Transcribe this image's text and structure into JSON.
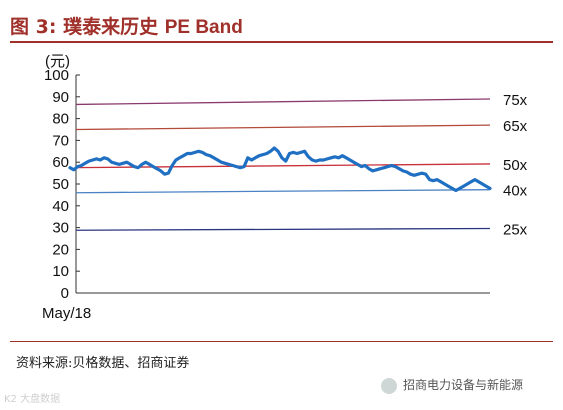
{
  "header": {
    "figure_label": "图 3:",
    "title_cn": "璞泰来历史",
    "title_en": "PE Band"
  },
  "source": "资料来源:贝格数据、招商证券",
  "wechat_account": "招商电力设备与新能源",
  "watermark": "K2 大盘数据",
  "colors": {
    "title": "#a0302a",
    "price_line": "#1f6fc2",
    "band_75x": "#8a3a6e",
    "band_65x": "#b34a3a",
    "band_50x": "#c8313a",
    "band_40x": "#4a82c4",
    "band_25x": "#2a3580"
  },
  "chart_data": {
    "type": "line",
    "ylabel": "(元)",
    "ylim": [
      0,
      100
    ],
    "yticks": [
      "0",
      "10",
      "20",
      "30",
      "40",
      "50",
      "60",
      "70",
      "80",
      "90",
      "100"
    ],
    "xticks": [
      "May/18"
    ],
    "grid": false,
    "bands": [
      {
        "name": "75x",
        "start": 86.5,
        "end": 89.0
      },
      {
        "name": "65x",
        "start": 75.0,
        "end": 77.0
      },
      {
        "name": "50x",
        "start": 57.5,
        "end": 59.2
      },
      {
        "name": "40x",
        "start": 46.0,
        "end": 47.4
      },
      {
        "name": "25x",
        "start": 28.8,
        "end": 29.6
      }
    ],
    "price": {
      "name": "",
      "values": [
        57.5,
        56.5,
        58.0,
        58.5,
        59.5,
        60.5,
        61.0,
        61.5,
        61.0,
        62.0,
        61.5,
        60.0,
        59.5,
        59.0,
        59.5,
        60.0,
        59.0,
        58.0,
        57.5,
        59.0,
        60.0,
        59.0,
        58.0,
        57.0,
        56.0,
        54.5,
        55.0,
        58.5,
        61.0,
        62.0,
        63.0,
        64.0,
        64.0,
        64.5,
        65.0,
        64.5,
        63.5,
        63.0,
        62.0,
        61.0,
        60.0,
        59.5,
        59.0,
        58.5,
        58.0,
        57.5,
        58.0,
        62.0,
        61.0,
        62.0,
        63.0,
        63.5,
        64.0,
        65.0,
        66.5,
        65.0,
        62.0,
        60.5,
        64.0,
        64.5,
        64.0,
        64.5,
        65.0,
        62.5,
        61.0,
        60.5,
        61.0,
        61.0,
        61.5,
        62.0,
        62.5,
        62.0,
        63.0,
        62.0,
        61.0,
        60.0,
        59.0,
        58.0,
        58.5,
        57.0,
        56.0,
        56.5,
        57.0,
        57.5,
        58.0,
        58.5,
        58.0,
        57.0,
        56.0,
        55.5,
        54.5,
        54.0,
        54.5,
        55.0,
        54.5,
        52.0,
        51.5,
        52.0,
        51.0,
        50.0,
        49.0,
        48.0,
        47.0,
        48.0,
        49.0,
        50.0,
        51.0,
        52.0,
        51.0,
        50.0,
        49.0,
        48.0
      ]
    }
  }
}
